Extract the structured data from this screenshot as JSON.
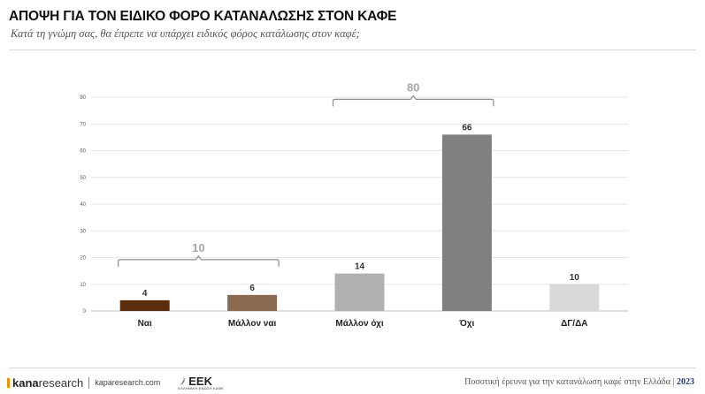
{
  "header": {
    "title": "ΑΠΟΨΗ ΓΙΑ ΤΟΝ ΕΙΔΙΚΟ ΦΟΡΟ ΚΑΤΑΝΑΛΩΣΗΣ ΣΤΟΝ ΚΑΦΕ",
    "subtitle": "Κατά τη γνώμη σας, θα έπρεπε να υπάρχει ειδικός φόρος κατάλωσης στον καφέ;"
  },
  "chart_data": {
    "type": "bar",
    "categories": [
      "Ναι",
      "Μάλλον ναι",
      "Μάλλον όχι",
      "Όχι",
      "ΔΓ/ΔΑ"
    ],
    "values": [
      4,
      6,
      14,
      66,
      10
    ],
    "colors": [
      "#5c2d0a",
      "#8b6a4f",
      "#b0b0b0",
      "#808080",
      "#d9d9d9"
    ],
    "ylim": [
      0,
      80
    ],
    "yticks": [
      0,
      10,
      20,
      30,
      40,
      50,
      60,
      70,
      80
    ],
    "grid": true,
    "xlabel": "",
    "ylabel": "",
    "groups": [
      {
        "label": "10",
        "from": 0,
        "to": 1
      },
      {
        "label": "80",
        "from": 2,
        "to": 3
      }
    ]
  },
  "footer": {
    "brand_bold": "kana",
    "brand_light": "research",
    "website": "kaparesearch.com",
    "partner_logo": "ΕΕΚ",
    "partner_sub": "ΕΛΛΗΝΙΚΗ ΕΝΩΣΗ ΚΑΦΕ",
    "survey_text": "Ποσοτική έρευνα για την κατανάλωση καφέ στην Ελλάδα |",
    "year": "2023"
  }
}
